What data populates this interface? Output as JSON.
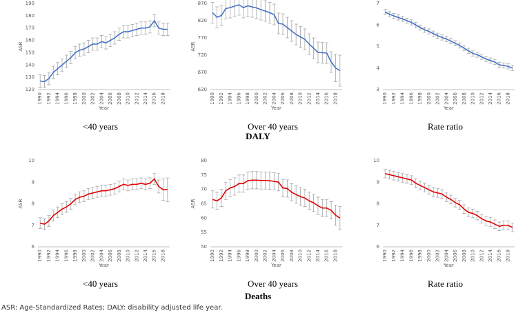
{
  "groups": [
    "DALY",
    "Deaths"
  ],
  "footnote": "ASR: Age-Standardized Rates; DALY: disability adjusted life year.",
  "chart_data": [
    {
      "type": "line",
      "ylabel": "ASR",
      "xlabel": "Year",
      "caption": "<40 years",
      "color": "#4472c4",
      "x": [
        1990,
        1991,
        1992,
        1993,
        1994,
        1995,
        1996,
        1997,
        1998,
        1999,
        2000,
        2001,
        2002,
        2003,
        2004,
        2005,
        2006,
        2007,
        2008,
        2009,
        2010,
        2011,
        2012,
        2013,
        2014,
        2015,
        2016,
        2017,
        2018,
        2019
      ],
      "values": [
        127,
        126.5,
        129,
        134,
        137,
        140,
        143,
        146,
        150,
        152,
        153,
        155,
        157,
        157,
        159,
        158,
        160,
        162,
        165,
        167,
        167,
        168,
        169,
        170,
        170,
        171,
        176,
        170,
        169,
        169
      ],
      "errors": [
        5,
        5,
        5,
        5,
        5,
        5,
        5,
        5,
        5,
        5,
        5,
        5,
        5,
        5,
        5,
        5,
        5,
        5,
        5,
        5,
        5,
        5,
        5,
        5,
        5,
        5,
        5,
        5,
        5,
        5
      ],
      "xlim": [
        1989.5,
        2019.5
      ],
      "xticks": [
        1990,
        1992,
        1994,
        1996,
        1998,
        2000,
        2002,
        2004,
        2006,
        2008,
        2010,
        2012,
        2014,
        2016,
        2018
      ],
      "ylim": [
        120,
        190
      ],
      "yticks": [
        120,
        130,
        140,
        150,
        160,
        170,
        180,
        190
      ]
    },
    {
      "type": "line",
      "ylabel": "ASR",
      "xlabel": "Year",
      "caption": "Over 40 years",
      "color": "#4472c4",
      "x": [
        1990,
        1991,
        1992,
        1993,
        1994,
        1995,
        1996,
        1997,
        1998,
        1999,
        2000,
        2001,
        2002,
        2003,
        2004,
        2005,
        2006,
        2007,
        2008,
        2009,
        2010,
        2011,
        2012,
        2013,
        2014,
        2015,
        2016,
        2017,
        2018,
        2019
      ],
      "values": [
        843,
        830,
        835,
        855,
        858,
        862,
        866,
        858,
        863,
        860,
        857,
        852,
        848,
        843,
        838,
        812,
        810,
        800,
        790,
        780,
        773,
        766,
        752,
        740,
        728,
        727,
        726,
        700,
        683,
        675
      ],
      "errors": [
        30,
        30,
        30,
        30,
        30,
        30,
        30,
        30,
        30,
        30,
        30,
        30,
        30,
        30,
        30,
        30,
        30,
        30,
        30,
        30,
        30,
        30,
        30,
        30,
        30,
        30,
        30,
        30,
        40,
        45
      ],
      "xlim": [
        1989.5,
        2019.5
      ],
      "xticks": [
        1990,
        1992,
        1994,
        1996,
        1998,
        2000,
        2002,
        2004,
        2006,
        2008,
        2010,
        2012,
        2014,
        2016,
        2018
      ],
      "ylim": [
        620,
        870
      ],
      "yticks": [
        620,
        670,
        720,
        770,
        820,
        870
      ]
    },
    {
      "type": "line",
      "xlabel": "Year",
      "caption": "Rate ratio",
      "color": "#4472c4",
      "x": [
        1990,
        1991,
        1992,
        1993,
        1994,
        1995,
        1996,
        1997,
        1998,
        1999,
        2000,
        2001,
        2002,
        2003,
        2004,
        2005,
        2006,
        2007,
        2008,
        2009,
        2010,
        2011,
        2012,
        2013,
        2014,
        2015,
        2016,
        2017,
        2018,
        2019
      ],
      "values": [
        6.6,
        6.5,
        6.42,
        6.35,
        6.28,
        6.2,
        6.12,
        6.0,
        5.88,
        5.78,
        5.7,
        5.6,
        5.5,
        5.42,
        5.35,
        5.25,
        5.15,
        5.05,
        4.92,
        4.8,
        4.68,
        4.62,
        4.52,
        4.42,
        4.35,
        4.28,
        4.15,
        4.12,
        4.08,
        4.0
      ],
      "errors": [
        0.12,
        0.12,
        0.12,
        0.12,
        0.12,
        0.12,
        0.12,
        0.12,
        0.12,
        0.12,
        0.12,
        0.12,
        0.12,
        0.12,
        0.12,
        0.12,
        0.12,
        0.12,
        0.12,
        0.12,
        0.12,
        0.12,
        0.12,
        0.12,
        0.12,
        0.12,
        0.12,
        0.12,
        0.12,
        0.12
      ],
      "xlim": [
        1989.5,
        2019.5
      ],
      "xticks": [
        1990,
        1992,
        1994,
        1996,
        1998,
        2000,
        2002,
        2004,
        2006,
        2008,
        2010,
        2012,
        2014,
        2016,
        2018
      ],
      "ylim": [
        3,
        7
      ],
      "yticks": [
        3,
        4,
        5,
        6,
        7
      ]
    },
    {
      "type": "line",
      "ylabel": "ASR",
      "xlabel": "Year",
      "caption": "<40 years",
      "color": "#e00000",
      "x": [
        1990,
        1991,
        1992,
        1993,
        1994,
        1995,
        1996,
        1997,
        1998,
        1999,
        2000,
        2001,
        2002,
        2003,
        2004,
        2005,
        2006,
        2007,
        2008,
        2009,
        2010,
        2011,
        2012,
        2013,
        2014,
        2015,
        2016,
        2017,
        2018,
        2019
      ],
      "values": [
        7.1,
        7.05,
        7.2,
        7.45,
        7.6,
        7.75,
        7.85,
        8.0,
        8.2,
        8.3,
        8.35,
        8.45,
        8.5,
        8.55,
        8.6,
        8.6,
        8.65,
        8.7,
        8.8,
        8.9,
        8.85,
        8.9,
        8.9,
        8.95,
        8.9,
        8.95,
        9.15,
        8.8,
        8.65,
        8.65
      ],
      "errors": [
        0.25,
        0.25,
        0.25,
        0.25,
        0.25,
        0.25,
        0.25,
        0.25,
        0.25,
        0.25,
        0.25,
        0.25,
        0.25,
        0.25,
        0.25,
        0.25,
        0.25,
        0.25,
        0.25,
        0.25,
        0.25,
        0.25,
        0.25,
        0.25,
        0.25,
        0.25,
        0.25,
        0.3,
        0.5,
        0.55
      ],
      "xlim": [
        1989.5,
        2019.5
      ],
      "xticks": [
        1990,
        1992,
        1994,
        1996,
        1998,
        2000,
        2002,
        2004,
        2006,
        2008,
        2010,
        2012,
        2014,
        2016,
        2018
      ],
      "ylim": [
        6,
        10
      ],
      "yticks": [
        6,
        7,
        8,
        9,
        10
      ]
    },
    {
      "type": "line",
      "ylabel": "ASR",
      "xlabel": "Year",
      "caption": "Over 40 years",
      "color": "#e00000",
      "x": [
        1990,
        1991,
        1992,
        1993,
        1994,
        1995,
        1996,
        1997,
        1998,
        1999,
        2000,
        2001,
        2002,
        2003,
        2004,
        2005,
        2006,
        2007,
        2008,
        2009,
        2010,
        2011,
        2012,
        2013,
        2014,
        2015,
        2016,
        2017,
        2018,
        2019
      ],
      "values": [
        66.5,
        66,
        67,
        69.5,
        70.5,
        71,
        72,
        72,
        73,
        73.2,
        73.2,
        73.1,
        73.1,
        73,
        72.8,
        72.5,
        70.5,
        70.3,
        69,
        68.2,
        67.5,
        67,
        66,
        65.3,
        64.3,
        63.5,
        63.5,
        62.7,
        61,
        60
      ],
      "errors": [
        3,
        3,
        3,
        3,
        3,
        3,
        3,
        3,
        3,
        3,
        3,
        3,
        3,
        3,
        3,
        3,
        3,
        3,
        3,
        3,
        3,
        3,
        3,
        3,
        3,
        3,
        3,
        3,
        3.5,
        4
      ],
      "xlim": [
        1989.5,
        2019.5
      ],
      "xticks": [
        1990,
        1992,
        1994,
        1996,
        1998,
        2000,
        2002,
        2004,
        2006,
        2008,
        2010,
        2012,
        2014,
        2016,
        2018
      ],
      "ylim": [
        50,
        80
      ],
      "yticks": [
        50,
        55,
        60,
        65,
        70,
        75,
        80
      ]
    },
    {
      "type": "line",
      "xlabel": "Year",
      "caption": "Rate ratio",
      "color": "#e00000",
      "x": [
        1990,
        1991,
        1992,
        1993,
        1994,
        1995,
        1996,
        1997,
        1998,
        1999,
        2000,
        2001,
        2002,
        2003,
        2004,
        2005,
        2006,
        2007,
        2008,
        2009,
        2010,
        2011,
        2012,
        2013,
        2014,
        2015,
        2016,
        2017,
        2018,
        2019
      ],
      "values": [
        9.4,
        9.35,
        9.3,
        9.25,
        9.2,
        9.15,
        9.1,
        8.95,
        8.85,
        8.75,
        8.65,
        8.55,
        8.5,
        8.45,
        8.3,
        8.2,
        8.05,
        7.95,
        7.75,
        7.6,
        7.55,
        7.45,
        7.3,
        7.2,
        7.15,
        7.05,
        6.95,
        7.0,
        7.0,
        6.9
      ],
      "errors": [
        0.2,
        0.2,
        0.2,
        0.2,
        0.2,
        0.2,
        0.2,
        0.2,
        0.2,
        0.2,
        0.2,
        0.2,
        0.2,
        0.2,
        0.2,
        0.2,
        0.2,
        0.2,
        0.2,
        0.2,
        0.2,
        0.2,
        0.2,
        0.2,
        0.2,
        0.2,
        0.2,
        0.2,
        0.2,
        0.2
      ],
      "xlim": [
        1989.5,
        2019.5
      ],
      "xticks": [
        1990,
        1992,
        1994,
        1996,
        1998,
        2000,
        2002,
        2004,
        2006,
        2008,
        2010,
        2012,
        2014,
        2016,
        2018
      ],
      "ylim": [
        6,
        10
      ],
      "yticks": [
        6,
        7,
        8,
        9,
        10
      ]
    }
  ]
}
